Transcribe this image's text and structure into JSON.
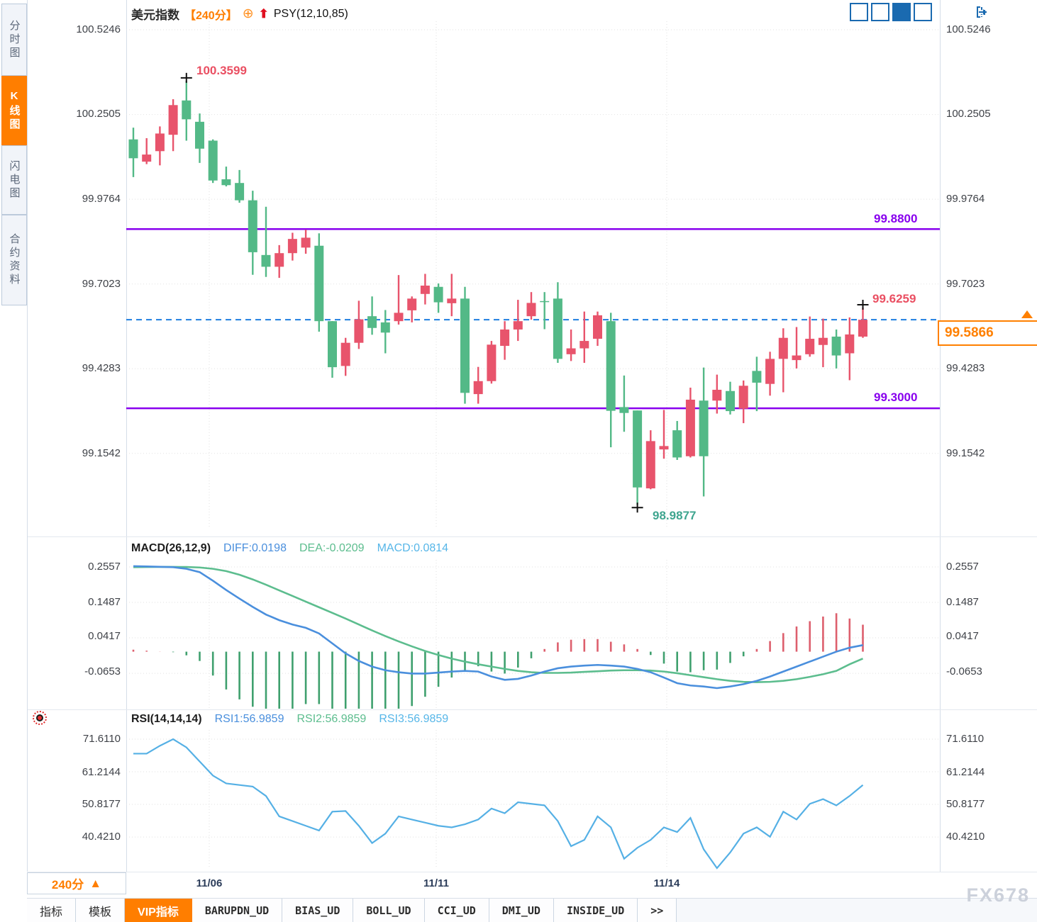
{
  "header": {
    "title": "美元指数",
    "period_tag": "【240分】",
    "indicator": "PSY(12,10,85)"
  },
  "icons": {
    "add_indicator": "⊕",
    "psy_up_arrow": "⬆",
    "period_up_triangle": "▲"
  },
  "sidebar": {
    "items": [
      {
        "label": "分时图",
        "active": false
      },
      {
        "label": "K线图",
        "active": true
      },
      {
        "label": "闪电图",
        "active": false
      },
      {
        "label": "合约资料",
        "active": false
      }
    ]
  },
  "main_chart": {
    "y_axis_labels": [
      "100.5246",
      "100.2505",
      "99.9764",
      "99.7023",
      "99.4283",
      "99.1542"
    ],
    "x_axis_labels": [
      {
        "label": "11/06"
      },
      {
        "label": "11/11"
      },
      {
        "label": "11/14"
      }
    ],
    "annotations": {
      "high_label": "100.3599",
      "upper_line_label": "99.8800",
      "recent_high_label": "99.6259",
      "current_price": "99.5866",
      "lower_line_label": "99.3000",
      "low_label": "98.9877"
    }
  },
  "macd_header": {
    "name": "MACD(26,12,9)",
    "diff": "DIFF:0.0198",
    "dea": "DEA:-0.0209",
    "macd": "MACD:0.0814"
  },
  "macd_axis": [
    "0.2557",
    "0.1487",
    "0.0417",
    "-0.0653"
  ],
  "rsi_header": {
    "name": "RSI(14,14,14)",
    "rsi1": "RSI1:56.9859",
    "rsi2": "RSI2:56.9859",
    "rsi3": "RSI3:56.9859"
  },
  "rsi_axis": [
    "71.6110",
    "61.2144",
    "50.8177",
    "40.4210"
  ],
  "period_selector": {
    "label": "240分"
  },
  "bottom_tabs": {
    "items": [
      {
        "label": "指标",
        "active": false
      },
      {
        "label": "模板",
        "active": false
      },
      {
        "label": "VIP指标",
        "active": true
      },
      {
        "label": "BARUPDN_UD",
        "active": false
      },
      {
        "label": "BIAS_UD",
        "active": false
      },
      {
        "label": "BOLL_UD",
        "active": false
      },
      {
        "label": "CCI_UD",
        "active": false
      },
      {
        "label": "DMI_UD",
        "active": false
      },
      {
        "label": "INSIDE_UD",
        "active": false
      },
      {
        "label": ">>",
        "active": false
      }
    ]
  },
  "watermark": "FX678",
  "colors": {
    "up_candle": "#e8546c",
    "down_candle": "#53b987",
    "level_line": "#8800ee",
    "last_price_line": "#1f7fe0",
    "accent_orange": "#ff7e00",
    "diff_line": "#4a8fdd",
    "dea_line": "#5cbd8e",
    "rsi_line": "#55b0e5",
    "hist_up": "#dd5f6d",
    "hist_down": "#3fa06e"
  },
  "chart_data": [
    {
      "type": "candlestick",
      "title": "美元指数 240分",
      "ohlc_order": "open,high,low,close",
      "color_rule": "close>=open red (up), close<open green (down)",
      "ylim": [
        98.913,
        100.552
      ],
      "yticks": [
        100.5246,
        100.2505,
        99.9764,
        99.7023,
        99.4283,
        99.1542
      ],
      "x_labels": [
        "11/06",
        "11/11",
        "11/14"
      ],
      "x_gridlines": [
        117,
        437,
        762
      ],
      "lines": {
        "resistance": 99.88,
        "support": 99.3,
        "last_price": 99.5866
      },
      "markers": [
        {
          "index": 4,
          "type": "high",
          "label": "100.3599"
        },
        {
          "index": 38,
          "type": "low",
          "label": "98.9877"
        },
        {
          "index": 55,
          "type": "high",
          "label": "99.6259"
        }
      ],
      "ohlc": [
        [
          100.17,
          100.208,
          100.048,
          100.109
        ],
        [
          100.098,
          100.174,
          100.09,
          100.121
        ],
        [
          100.132,
          100.212,
          100.086,
          100.189
        ],
        [
          100.185,
          100.3,
          100.132,
          100.281
        ],
        [
          100.296,
          100.36,
          100.166,
          100.235
        ],
        [
          100.227,
          100.254,
          100.094,
          100.14
        ],
        [
          100.166,
          100.17,
          100.029,
          100.037
        ],
        [
          100.041,
          100.082,
          100.018,
          100.022
        ],
        [
          100.029,
          100.071,
          99.965,
          99.973
        ],
        [
          99.973,
          100.004,
          99.732,
          99.805
        ],
        [
          99.796,
          99.952,
          99.725,
          99.758
        ],
        [
          99.758,
          99.828,
          99.722,
          99.802
        ],
        [
          99.802,
          99.868,
          99.778,
          99.848
        ],
        [
          99.82,
          99.878,
          99.8,
          99.852
        ],
        [
          99.826,
          99.866,
          99.548,
          99.582
        ],
        [
          99.582,
          99.582,
          99.399,
          99.433
        ],
        [
          99.437,
          99.528,
          99.405,
          99.512
        ],
        [
          99.512,
          99.648,
          99.492,
          99.588
        ],
        [
          99.598,
          99.662,
          99.538,
          99.56
        ],
        [
          99.578,
          99.618,
          99.478,
          99.545
        ],
        [
          99.582,
          99.731,
          99.571,
          99.609
        ],
        [
          99.617,
          99.662,
          99.578,
          99.655
        ],
        [
          99.67,
          99.735,
          99.636,
          99.697
        ],
        [
          99.693,
          99.704,
          99.609,
          99.643
        ],
        [
          99.64,
          99.735,
          99.598,
          99.655
        ],
        [
          99.655,
          99.693,
          99.315,
          99.35
        ],
        [
          99.346,
          99.434,
          99.315,
          99.388
        ],
        [
          99.388,
          99.518,
          99.38,
          99.506
        ],
        [
          99.502,
          99.582,
          99.457,
          99.555
        ],
        [
          99.555,
          99.651,
          99.518,
          99.582
        ],
        [
          99.598,
          99.676,
          99.587,
          99.641
        ],
        [
          99.647,
          99.676,
          99.556,
          99.645
        ],
        [
          99.655,
          99.708,
          99.447,
          99.46
        ],
        [
          99.475,
          99.555,
          99.453,
          99.494
        ],
        [
          99.494,
          99.613,
          99.447,
          99.518
        ],
        [
          99.525,
          99.613,
          99.502,
          99.601
        ],
        [
          99.582,
          99.609,
          99.174,
          99.292
        ],
        [
          99.304,
          99.406,
          99.224,
          99.285
        ],
        [
          99.293,
          99.293,
          98.988,
          99.044
        ],
        [
          99.041,
          99.229,
          99.038,
          99.194
        ],
        [
          99.167,
          99.295,
          99.137,
          99.178
        ],
        [
          99.229,
          99.259,
          99.133,
          99.141
        ],
        [
          99.145,
          99.367,
          99.141,
          99.328
        ],
        [
          99.325,
          99.432,
          99.015,
          99.145
        ],
        [
          99.325,
          99.409,
          99.283,
          99.36
        ],
        [
          99.356,
          99.386,
          99.28,
          99.291
        ],
        [
          99.299,
          99.39,
          99.252,
          99.373
        ],
        [
          99.421,
          99.467,
          99.291,
          99.383
        ],
        [
          99.379,
          99.483,
          99.341,
          99.46
        ],
        [
          99.46,
          99.559,
          99.352,
          99.528
        ],
        [
          99.456,
          99.563,
          99.429,
          99.471
        ],
        [
          99.475,
          99.597,
          99.467,
          99.525
        ],
        [
          99.505,
          99.59,
          99.433,
          99.528
        ],
        [
          99.532,
          99.555,
          99.429,
          99.471
        ],
        [
          99.478,
          99.594,
          99.391,
          99.539
        ],
        [
          99.532,
          99.6259,
          99.528,
          99.5866
        ]
      ]
    },
    {
      "type": "bar+line",
      "title": "MACD(26,12,9)",
      "values": {
        "DIFF": 0.0198,
        "DEA": -0.0209,
        "MACD": 0.0814
      },
      "hist_rule": "hist = 2*(DIFF-DEA); >=0 red, <0 green",
      "ylim": [
        -0.172,
        0.277
      ],
      "yticks": [
        0.2557,
        0.1487,
        0.0417,
        -0.0653
      ],
      "diff": [
        0.258,
        0.257,
        0.256,
        0.255,
        0.25,
        0.24,
        0.214,
        0.186,
        0.16,
        0.135,
        0.112,
        0.095,
        0.082,
        0.072,
        0.055,
        0.025,
        -0.005,
        -0.028,
        -0.045,
        -0.056,
        -0.062,
        -0.066,
        -0.066,
        -0.063,
        -0.06,
        -0.058,
        -0.06,
        -0.075,
        -0.085,
        -0.082,
        -0.072,
        -0.06,
        -0.05,
        -0.045,
        -0.042,
        -0.04,
        -0.042,
        -0.045,
        -0.052,
        -0.062,
        -0.078,
        -0.095,
        -0.102,
        -0.105,
        -0.11,
        -0.105,
        -0.098,
        -0.088,
        -0.075,
        -0.06,
        -0.045,
        -0.03,
        -0.015,
        0.0,
        0.012,
        0.0198
      ],
      "dea": [
        0.255,
        0.2555,
        0.2558,
        0.2558,
        0.2555,
        0.254,
        0.25,
        0.243,
        0.232,
        0.218,
        0.202,
        0.185,
        0.168,
        0.151,
        0.134,
        0.117,
        0.1,
        0.082,
        0.064,
        0.047,
        0.031,
        0.016,
        0.002,
        -0.01,
        -0.021,
        -0.03,
        -0.038,
        -0.045,
        -0.052,
        -0.058,
        -0.062,
        -0.064,
        -0.064,
        -0.063,
        -0.061,
        -0.059,
        -0.057,
        -0.056,
        -0.056,
        -0.057,
        -0.06,
        -0.065,
        -0.071,
        -0.077,
        -0.083,
        -0.088,
        -0.091,
        -0.092,
        -0.091,
        -0.088,
        -0.083,
        -0.076,
        -0.068,
        -0.058,
        -0.038,
        -0.0209
      ]
    },
    {
      "type": "line",
      "title": "RSI(14,14,14)",
      "values": {
        "RSI1": 56.9859,
        "RSI2": 56.9859,
        "RSI3": 56.9859
      },
      "ylim": [
        30.5,
        74.55
      ],
      "yticks": [
        71.611,
        61.2144,
        50.8177,
        40.421
      ],
      "rsi": [
        67.0,
        67.0,
        69.5,
        71.6,
        69.0,
        64.5,
        60.0,
        57.5,
        57.0,
        56.5,
        53.5,
        47.0,
        45.5,
        44.0,
        42.5,
        48.5,
        48.7,
        44.0,
        38.5,
        41.5,
        47.0,
        46.0,
        45.0,
        44.0,
        43.5,
        44.5,
        46.0,
        49.5,
        48.0,
        51.5,
        51.0,
        50.5,
        45.5,
        37.5,
        39.5,
        47.0,
        43.5,
        33.5,
        37.0,
        39.5,
        43.5,
        42.0,
        46.5,
        36.5,
        30.5,
        35.5,
        41.5,
        43.5,
        40.5,
        48.5,
        46.0,
        51.0,
        52.5,
        50.5,
        53.5,
        56.9859
      ]
    }
  ]
}
